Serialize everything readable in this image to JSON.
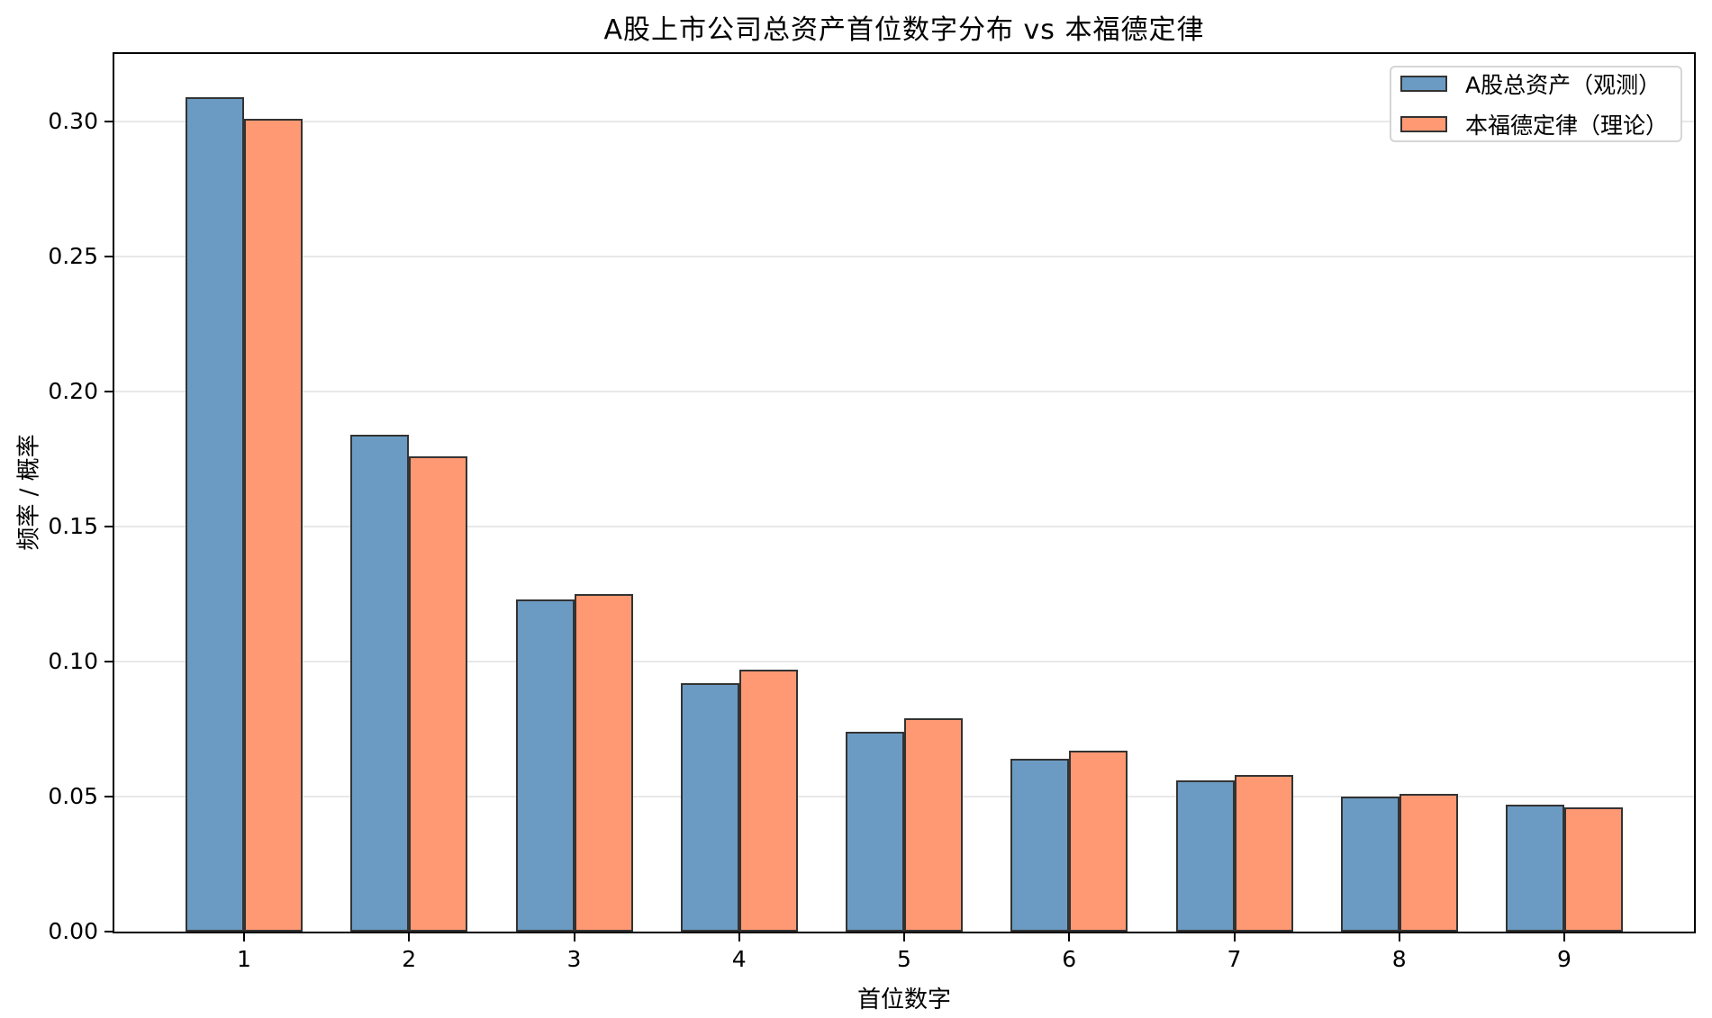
{
  "figure": {
    "title": "A股上市公司总资产首位数字分布 vs 本福德定律",
    "xlabel": "首位数字",
    "ylabel": "频率 / 概率"
  },
  "chart_data": {
    "type": "bar",
    "title": "A股上市公司总资产首位数字分布 vs 本福德定律",
    "xlabel": "首位数字",
    "ylabel": "频率 / 概率",
    "categories": [
      "1",
      "2",
      "3",
      "4",
      "5",
      "6",
      "7",
      "8",
      "9"
    ],
    "series": [
      {
        "name": "A股总资产（观测）",
        "color": "#6B9BC3",
        "values": [
          0.309,
          0.184,
          0.123,
          0.092,
          0.074,
          0.064,
          0.056,
          0.05,
          0.047
        ]
      },
      {
        "name": "本福德定律（理论）",
        "color": "#FF9973",
        "values": [
          0.301,
          0.176,
          0.125,
          0.097,
          0.079,
          0.067,
          0.058,
          0.051,
          0.046
        ]
      }
    ],
    "ylim": [
      0,
      0.325
    ],
    "yticks": [
      0.0,
      0.05,
      0.1,
      0.15,
      0.2,
      0.25,
      0.3
    ],
    "ytick_labels": [
      "0.00",
      "0.05",
      "0.10",
      "0.15",
      "0.20",
      "0.25",
      "0.30"
    ],
    "grid": "horizontal",
    "grid_color": "#E8E8E8",
    "bar_edge_color": "#333333",
    "legend_position": "upper right"
  }
}
